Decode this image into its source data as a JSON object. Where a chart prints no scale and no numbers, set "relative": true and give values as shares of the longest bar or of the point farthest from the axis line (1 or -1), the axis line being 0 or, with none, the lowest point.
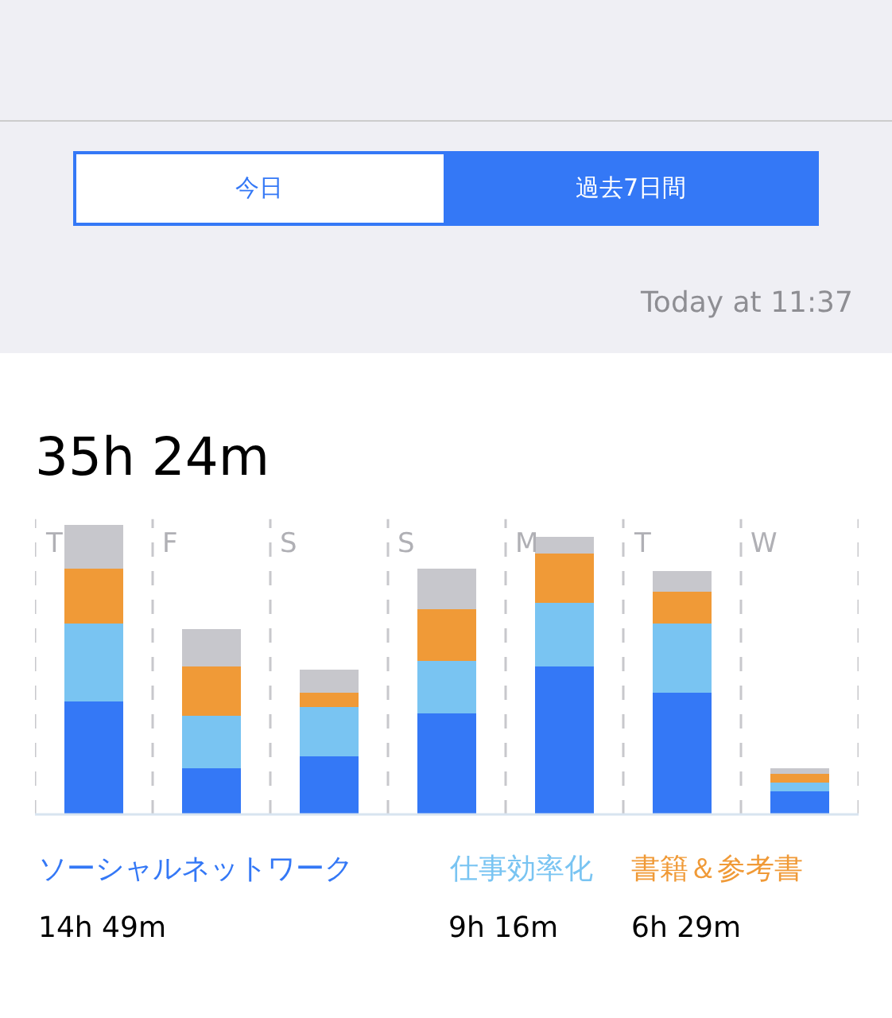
{
  "chart_data": {
    "type": "bar",
    "title": "35h 24m",
    "stacked": true,
    "relative": true,
    "grid": "x",
    "legend": "bottom",
    "categories": [
      "T",
      "F",
      "S",
      "S",
      "M",
      "T",
      "W"
    ],
    "series": [
      {
        "name": "ソーシャルネットワーク",
        "color": "#3478f6",
        "values": [
          0.39,
          0.16,
          0.2,
          0.35,
          0.51,
          0.42,
          0.08
        ]
      },
      {
        "name": "仕事効率化",
        "color": "#79c4f2",
        "values": [
          0.27,
          0.18,
          0.17,
          0.18,
          0.22,
          0.24,
          0.03
        ]
      },
      {
        "name": "書籍＆参考書",
        "color": "#f09a37",
        "values": [
          0.19,
          0.17,
          0.05,
          0.18,
          0.17,
          0.11,
          0.03
        ]
      },
      {
        "color": "#c7c7cc",
        "values": [
          0.15,
          0.13,
          0.08,
          0.14,
          0.06,
          0.07,
          0.02
        ]
      }
    ],
    "annotations": [
      "今日",
      "過去7日間",
      "Today at 11:37",
      "14h 49m",
      "9h 16m",
      "6h 29m"
    ]
  }
}
